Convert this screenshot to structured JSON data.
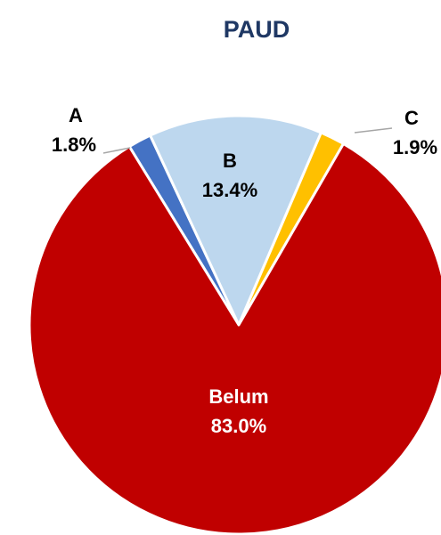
{
  "chart_data": {
    "type": "pie",
    "title": "PAUD",
    "categories": [
      "A",
      "B",
      "C",
      "Belum"
    ],
    "values": [
      1.8,
      13.4,
      1.9,
      83.0
    ],
    "value_labels": [
      "1.8%",
      "13.4%",
      "1.9%",
      "83.0%"
    ],
    "colors": [
      "#4472c4",
      "#bdd7ee",
      "#ffc000",
      "#c00000"
    ]
  }
}
